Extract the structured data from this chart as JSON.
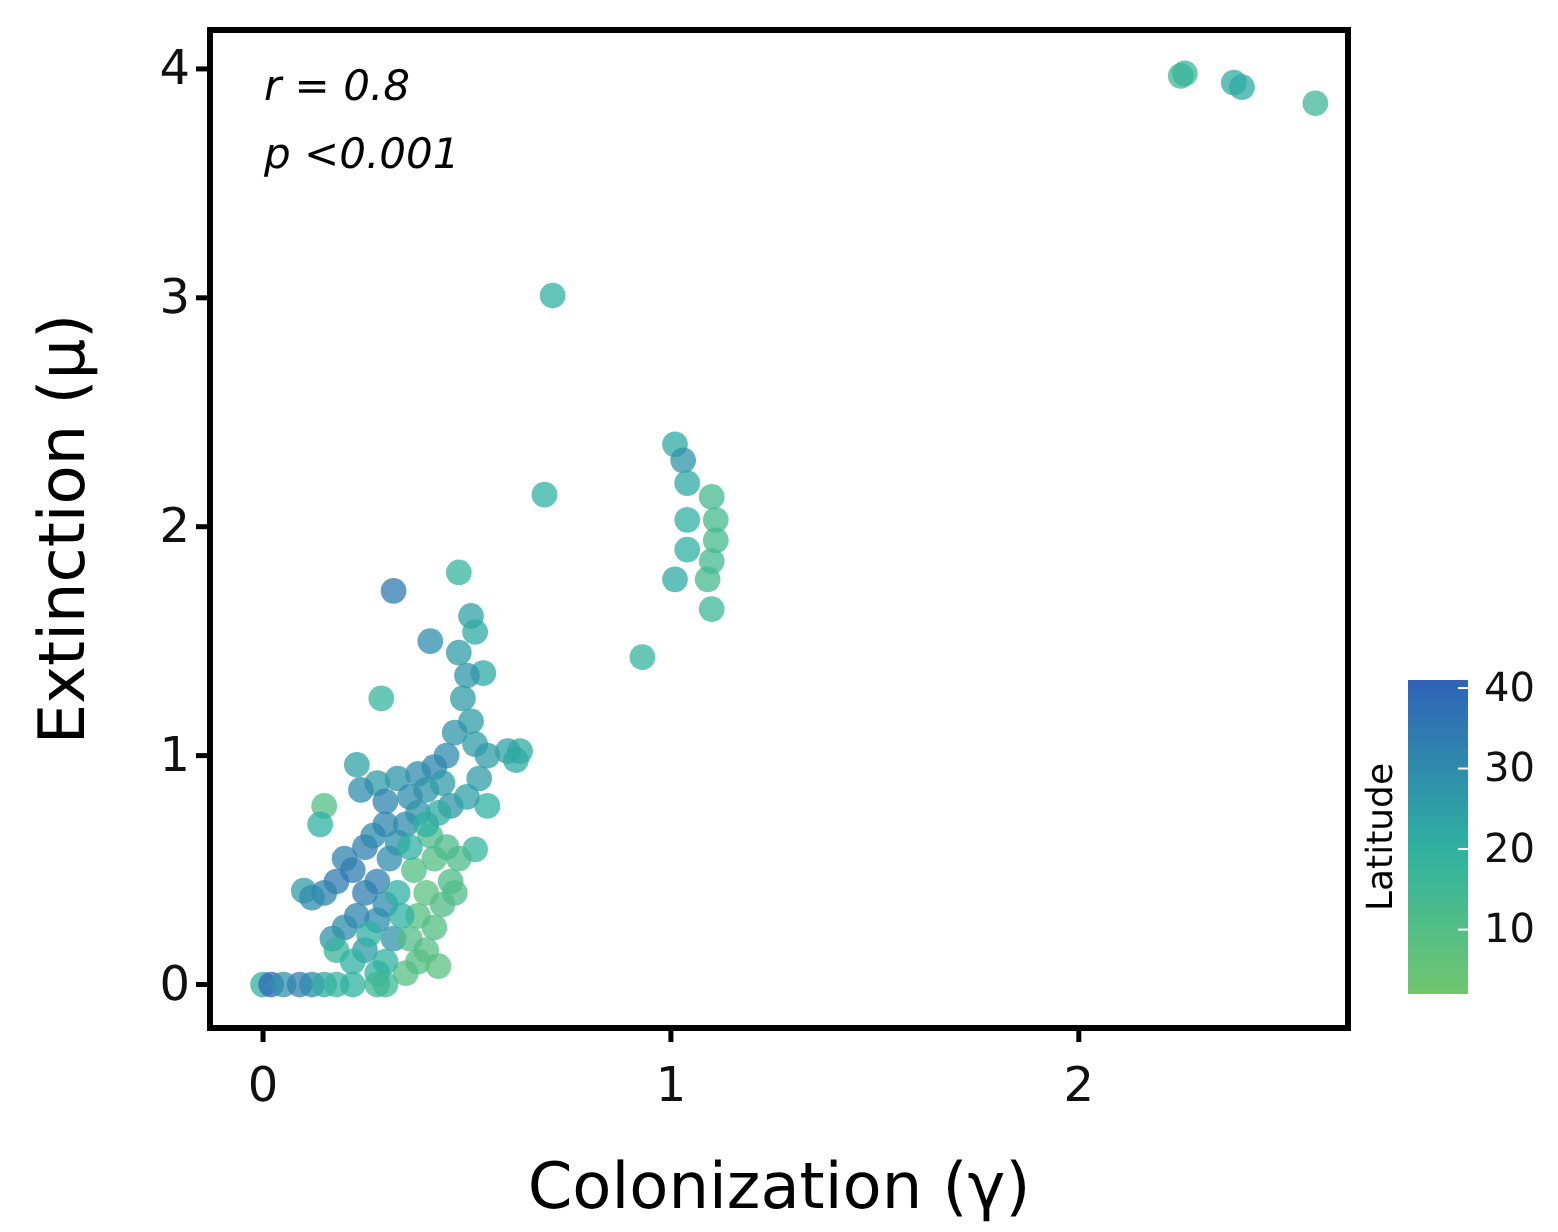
{
  "chart_data": {
    "type": "scatter",
    "xlabel": "Colonization (γ)",
    "ylabel": "Extinction (μ)",
    "clabel": "Latitude",
    "annotations": [
      "r = 0.8",
      "p <0.001"
    ],
    "xlim": [
      -0.13,
      2.66
    ],
    "ylim": [
      -0.19,
      4.17
    ],
    "xticks": [
      0,
      1,
      2
    ],
    "yticks": [
      0,
      1,
      2,
      3,
      4
    ],
    "clim": [
      2,
      41
    ],
    "cticks": [
      10,
      20,
      30,
      40
    ],
    "marker": "circle",
    "x": [
      2.25,
      2.26,
      2.38,
      2.4,
      2.58,
      0.71,
      0.69,
      0.93,
      1.01,
      1.01,
      1.03,
      1.04,
      1.04,
      1.04,
      1.1,
      1.11,
      1.11,
      1.1,
      1.09,
      1.1,
      0.32,
      0.48,
      0.41,
      0.51,
      0.29,
      0.52,
      0.54,
      0.63,
      0.55,
      0.52,
      0.15,
      0.14,
      0.1,
      0.23,
      0.48,
      0.5,
      0.49,
      0.51,
      0.47,
      0.45,
      0.52,
      0.55,
      0.6,
      0.62,
      0.42,
      0.38,
      0.33,
      0.28,
      0.24,
      0.3,
      0.36,
      0.4,
      0.44,
      0.46,
      0.5,
      0.53,
      0.2,
      0.22,
      0.25,
      0.27,
      0.3,
      0.18,
      0.15,
      0.12,
      0.25,
      0.28,
      0.31,
      0.33,
      0.35,
      0.38,
      0.23,
      0.2,
      0.17,
      0.28,
      0.3,
      0.32,
      0.25,
      0.38,
      0.4,
      0.42,
      0.44,
      0.46,
      0.4,
      0.38,
      0.36,
      0.42,
      0.45,
      0.48,
      0.47,
      0.43,
      0.35,
      0.41,
      0.37,
      0.3,
      0.28,
      0.33,
      0.36,
      0.4,
      0.43,
      0.22,
      0.18,
      0.26,
      0.34,
      0,
      0.02,
      0.05,
      0.09,
      0.12,
      0.15,
      0.18,
      0.22,
      0.28,
      0.3
    ],
    "values": [
      3.97,
      3.98,
      3.94,
      3.92,
      3.85,
      3.01,
      2.14,
      1.43,
      1.77,
      2.36,
      2.29,
      2.19,
      2.03,
      1.9,
      2.13,
      2.03,
      1.94,
      1.85,
      1.77,
      1.64,
      1.72,
      1.8,
      1.5,
      1.61,
      1.25,
      1.54,
      1.36,
      1.02,
      0.78,
      0.59,
      0.78,
      0.7,
      0.41,
      0.96,
      1.45,
      1.35,
      1.25,
      1.15,
      1.1,
      1,
      1.05,
      1,
      1.02,
      0.98,
      0.95,
      0.92,
      0.9,
      0.88,
      0.85,
      0.8,
      0.82,
      0.85,
      0.88,
      0.78,
      0.82,
      0.9,
      0.55,
      0.5,
      0.6,
      0.65,
      0.7,
      0.45,
      0.4,
      0.38,
      0.4,
      0.45,
      0.55,
      0.62,
      0.7,
      0.75,
      0.3,
      0.25,
      0.2,
      0.28,
      0.35,
      0.2,
      0.15,
      0.1,
      0.15,
      0.25,
      0.35,
      0.45,
      0.4,
      0.3,
      0.2,
      0.55,
      0.6,
      0.55,
      0.4,
      0.08,
      0.05,
      0.65,
      0.5,
      0.1,
      0.05,
      0.4,
      0.6,
      0.7,
      0.75,
      0.1,
      0.15,
      0.22,
      0.3,
      0,
      0,
      0,
      0,
      0,
      0,
      0,
      0,
      0,
      0
    ],
    "cvalues": [
      17,
      17,
      22,
      22,
      16,
      20,
      20,
      18,
      22,
      22,
      28,
      22,
      20,
      20,
      14,
      14,
      14,
      14,
      14,
      16,
      35,
      18,
      30,
      24,
      18,
      22,
      22,
      22,
      20,
      18,
      10,
      20,
      25,
      24,
      26,
      28,
      26,
      25,
      28,
      30,
      25,
      26,
      24,
      22,
      32,
      30,
      28,
      26,
      30,
      32,
      30,
      28,
      26,
      28,
      24,
      26,
      32,
      34,
      33,
      30,
      32,
      35,
      32,
      30,
      34,
      33,
      30,
      28,
      30,
      28,
      32,
      30,
      28,
      30,
      30,
      28,
      26,
      10,
      9,
      10,
      11,
      12,
      8,
      9,
      10,
      10,
      12,
      12,
      11,
      8,
      9,
      12,
      10,
      20,
      20,
      20,
      20,
      20,
      22,
      20,
      18,
      20,
      20,
      20,
      40,
      28,
      33,
      30,
      22,
      18,
      20,
      16,
      15
    ]
  }
}
